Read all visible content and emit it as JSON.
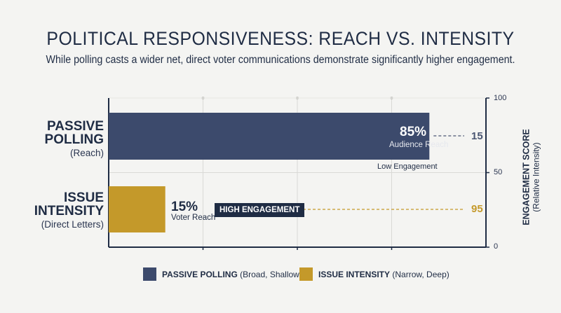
{
  "chart_data": {
    "type": "bar",
    "orientation": "horizontal",
    "title": "POLITICAL RESPONSIVENESS: REACH VS. INTENSITY",
    "subtitle": "While polling casts a wider net, direct voter communications demonstrate significantly higher engagement.",
    "categories": [
      {
        "name": "PASSIVE POLLING",
        "sub": "(Reach)"
      },
      {
        "name": "ISSUE INTENSITY",
        "sub": "(Direct Letters)"
      }
    ],
    "series": [
      {
        "values": [
          85,
          15
        ],
        "value_labels": [
          "85%",
          "15%"
        ],
        "value_sublabels": [
          "Audience Reach",
          "Voter Reach"
        ]
      }
    ],
    "xlim": [
      0,
      100
    ],
    "secondary_axis": {
      "title": "ENGAGEMENT SCORE",
      "subtitle": "(Relative Intensity)",
      "ticks": [
        "100",
        "50",
        "0"
      ],
      "ylim": [
        0,
        100
      ],
      "values": [
        15,
        95
      ],
      "value_labels": [
        "15",
        "95"
      ]
    },
    "annotations": {
      "low": "Low Engagement",
      "high": "HIGH ENGAGEMENT"
    },
    "legend": [
      {
        "name": "PASSIVE POLLING",
        "desc": "(Broad, Shallow)",
        "color": "#3c4a6c"
      },
      {
        "name": "ISSUE INTENSITY",
        "desc": "(Narrow, Deep)",
        "color": "#c4992a"
      }
    ],
    "legend_position": "bottom",
    "grid": true
  },
  "colors": {
    "polling": "#3c4a6c",
    "intensity": "#c4992a",
    "navy": "#1f2c44",
    "grid": "#d9d9d6"
  }
}
